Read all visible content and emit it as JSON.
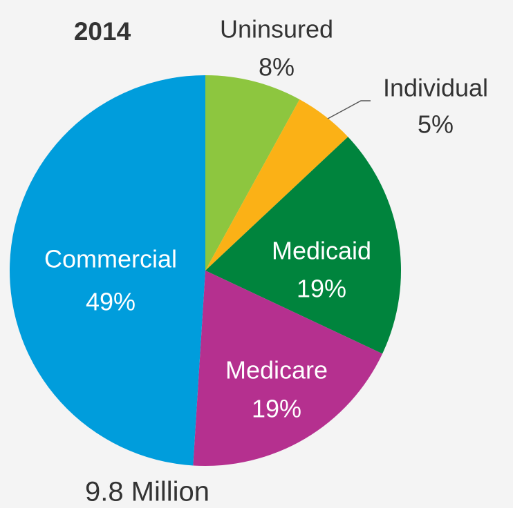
{
  "chart_data": {
    "type": "pie",
    "title": "2014",
    "caption": "9.8 Million",
    "categories": [
      "Uninsured",
      "Individual",
      "Medicaid",
      "Medicare",
      "Commercial"
    ],
    "values": [
      8,
      5,
      19,
      19,
      49
    ],
    "value_labels": [
      "8%",
      "5%",
      "19%",
      "19%",
      "49%"
    ],
    "colors": [
      "#8dc63f",
      "#fbb116",
      "#00843d",
      "#b5308f",
      "#009ddc"
    ]
  }
}
